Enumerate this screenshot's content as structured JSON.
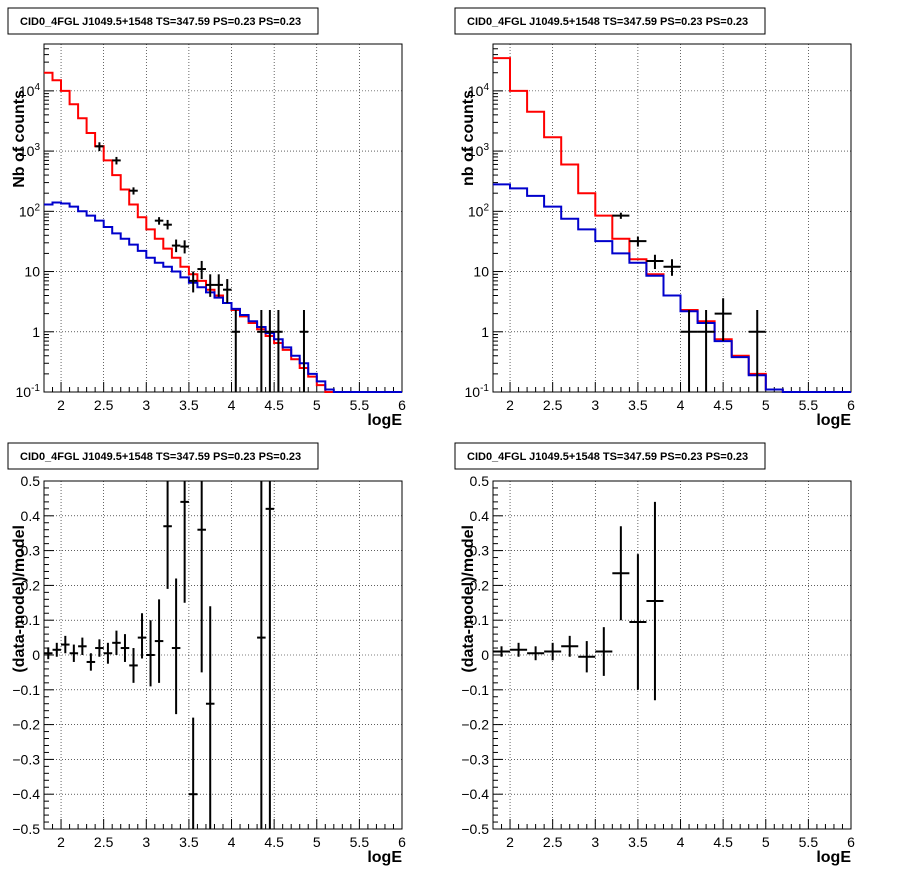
{
  "chart_data": [
    {
      "type": "line",
      "title": "CID0_4FGL J1049.5+1548 TS=347.59 PS=0.23 PS=0.23",
      "xlabel": "logE",
      "ylabel": "Nb of counts",
      "xlim": [
        1.8,
        6
      ],
      "ylim": [
        0.1,
        60000
      ],
      "yscale": "log",
      "grid": true,
      "x_ticks": [
        "2",
        "2.5",
        "3",
        "3.5",
        "4",
        "4.5",
        "5",
        "5.5",
        "6"
      ],
      "y_ticks": [
        "10^-1",
        "1",
        "10",
        "10^2",
        "10^3",
        "10^4"
      ],
      "bin_edges": [
        1.8,
        1.9,
        2.0,
        2.1,
        2.2,
        2.3,
        2.4,
        2.5,
        2.6,
        2.7,
        2.8,
        2.9,
        3.0,
        3.1,
        3.2,
        3.3,
        3.4,
        3.5,
        3.6,
        3.7,
        3.8,
        3.9,
        4.0,
        4.1,
        4.2,
        4.3,
        4.4,
        4.5,
        4.6,
        4.7,
        4.8,
        4.9,
        5.0,
        5.1,
        5.2,
        5.3,
        5.4,
        5.5,
        5.6,
        5.7,
        5.8,
        5.9,
        6.0
      ],
      "series": [
        {
          "color": "#ff0000",
          "values": [
            20000,
            15000,
            10000,
            6000,
            3500,
            2000,
            1200,
            700,
            400,
            230,
            130,
            80,
            50,
            35,
            24,
            17,
            12,
            9,
            7,
            5,
            4,
            3,
            2.3,
            1.8,
            1.4,
            1.1,
            0.85,
            0.65,
            0.5,
            0.35,
            0.25,
            0.18,
            0.13,
            0.1,
            0.1,
            0.1,
            0.1,
            0.1,
            0.1,
            0.1,
            0.1,
            0.1
          ]
        },
        {
          "color": "#0000cc",
          "values": [
            130,
            140,
            135,
            120,
            100,
            85,
            70,
            55,
            43,
            35,
            28,
            22,
            17,
            14,
            12,
            10,
            8,
            6.5,
            5.5,
            4.5,
            3.7,
            3,
            2.4,
            1.9,
            1.5,
            1.2,
            0.95,
            0.75,
            0.55,
            0.4,
            0.3,
            0.2,
            0.15,
            0.11,
            0.1,
            0.1,
            0.1,
            0.1,
            0.1,
            0.1,
            0.1,
            0.1
          ]
        }
      ],
      "points": [
        {
          "x": 2.45,
          "y": 1200,
          "ylo": 1000,
          "yhi": 1400
        },
        {
          "x": 2.65,
          "y": 700,
          "ylo": 600,
          "yhi": 800
        },
        {
          "x": 2.85,
          "y": 220,
          "ylo": 190,
          "yhi": 250
        },
        {
          "x": 3.15,
          "y": 70,
          "ylo": 60,
          "yhi": 80
        },
        {
          "x": 3.25,
          "y": 60,
          "ylo": 50,
          "yhi": 72
        },
        {
          "x": 3.35,
          "y": 27,
          "ylo": 21,
          "yhi": 34
        },
        {
          "x": 3.45,
          "y": 26,
          "ylo": 20,
          "yhi": 33
        },
        {
          "x": 3.55,
          "y": 7,
          "ylo": 4.5,
          "yhi": 10
        },
        {
          "x": 3.65,
          "y": 11,
          "ylo": 7.5,
          "yhi": 15
        },
        {
          "x": 3.75,
          "y": 6,
          "ylo": 3.8,
          "yhi": 9
        },
        {
          "x": 3.85,
          "y": 6,
          "ylo": 3.8,
          "yhi": 9
        },
        {
          "x": 3.95,
          "y": 5,
          "ylo": 3,
          "yhi": 7.5
        },
        {
          "x": 4.05,
          "y": 1,
          "ylo": 0.1,
          "yhi": 2.3
        },
        {
          "x": 4.35,
          "y": 1,
          "ylo": 0.1,
          "yhi": 2.3
        },
        {
          "x": 4.45,
          "y": 1,
          "ylo": 0.1,
          "yhi": 2.3
        },
        {
          "x": 4.55,
          "y": 1,
          "ylo": 0.1,
          "yhi": 2.3
        },
        {
          "x": 4.85,
          "y": 1,
          "ylo": 0.1,
          "yhi": 2.3
        }
      ]
    },
    {
      "type": "line",
      "title": "CID0_4FGL J1049.5+1548 TS=347.59 PS=0.23 PS=0.23",
      "xlabel": "logE",
      "ylabel": "nb of counts",
      "xlim": [
        1.8,
        6
      ],
      "ylim": [
        0.1,
        60000
      ],
      "yscale": "log",
      "grid": true,
      "x_ticks": [
        "2",
        "2.5",
        "3",
        "3.5",
        "4",
        "4.5",
        "5",
        "5.5",
        "6"
      ],
      "y_ticks": [
        "10^-1",
        "1",
        "10",
        "10^2",
        "10^3",
        "10^4"
      ],
      "bin_edges": [
        1.8,
        2.0,
        2.2,
        2.4,
        2.6,
        2.8,
        3.0,
        3.2,
        3.4,
        3.6,
        3.8,
        4.0,
        4.2,
        4.4,
        4.6,
        4.8,
        5.0,
        5.2,
        5.4,
        5.6,
        5.8,
        6.0
      ],
      "series": [
        {
          "color": "#ff0000",
          "values": [
            35000,
            10000,
            4500,
            1700,
            600,
            200,
            85,
            35,
            16,
            9,
            4,
            2.3,
            1.5,
            0.75,
            0.4,
            0.2,
            0.11,
            0.1,
            0.1,
            0.1,
            0.1
          ]
        },
        {
          "color": "#0000cc",
          "values": [
            280,
            240,
            180,
            120,
            75,
            50,
            32,
            20,
            14,
            8.5,
            4,
            2.2,
            1.4,
            0.7,
            0.38,
            0.19,
            0.11,
            0.1,
            0.1,
            0.1,
            0.1
          ]
        }
      ],
      "points": [
        {
          "x": 3.3,
          "y": 85,
          "ylo": 75,
          "yhi": 95
        },
        {
          "x": 3.5,
          "y": 32,
          "ylo": 26,
          "yhi": 38
        },
        {
          "x": 3.7,
          "y": 15,
          "ylo": 11,
          "yhi": 19
        },
        {
          "x": 3.9,
          "y": 12,
          "ylo": 8.5,
          "yhi": 16
        },
        {
          "x": 4.1,
          "y": 1,
          "ylo": 0.1,
          "yhi": 2.3
        },
        {
          "x": 4.3,
          "y": 1,
          "ylo": 0.1,
          "yhi": 2.3
        },
        {
          "x": 4.5,
          "y": 2,
          "ylo": 0.7,
          "yhi": 3.6
        },
        {
          "x": 4.9,
          "y": 1,
          "ylo": 0.1,
          "yhi": 2.3
        }
      ]
    },
    {
      "type": "scatter",
      "title": "CID0_4FGL J1049.5+1548 TS=347.59 PS=0.23 PS=0.23",
      "xlabel": "logE",
      "ylabel": "(data-model)/model",
      "xlim": [
        1.8,
        6
      ],
      "ylim": [
        -0.5,
        0.5
      ],
      "grid": true,
      "x_ticks": [
        "2",
        "2.5",
        "3",
        "3.5",
        "4",
        "4.5",
        "5",
        "5.5",
        "6"
      ],
      "y_ticks": [
        "−0.5",
        "−0.4",
        "−0.3",
        "−0.2",
        "−0.1",
        "0",
        "0.1",
        "0.2",
        "0.3",
        "0.4",
        "0.5"
      ],
      "points": [
        {
          "x": 1.85,
          "xerr": 0.05,
          "y": 0.005,
          "ylo": -0.012,
          "yhi": 0.022
        },
        {
          "x": 1.95,
          "xerr": 0.05,
          "y": 0.015,
          "ylo": -0.005,
          "yhi": 0.035
        },
        {
          "x": 2.05,
          "xerr": 0.05,
          "y": 0.03,
          "ylo": 0.005,
          "yhi": 0.055
        },
        {
          "x": 2.15,
          "xerr": 0.05,
          "y": 0.005,
          "ylo": -0.02,
          "yhi": 0.03
        },
        {
          "x": 2.25,
          "xerr": 0.05,
          "y": 0.025,
          "ylo": 0.0,
          "yhi": 0.05
        },
        {
          "x": 2.35,
          "xerr": 0.05,
          "y": -0.02,
          "ylo": -0.045,
          "yhi": 0.005
        },
        {
          "x": 2.45,
          "xerr": 0.05,
          "y": 0.02,
          "ylo": -0.005,
          "yhi": 0.045
        },
        {
          "x": 2.55,
          "xerr": 0.05,
          "y": 0.005,
          "ylo": -0.025,
          "yhi": 0.035
        },
        {
          "x": 2.65,
          "xerr": 0.05,
          "y": 0.035,
          "ylo": 0.0,
          "yhi": 0.07
        },
        {
          "x": 2.75,
          "xerr": 0.05,
          "y": 0.02,
          "ylo": -0.02,
          "yhi": 0.06
        },
        {
          "x": 2.85,
          "xerr": 0.05,
          "y": -0.03,
          "ylo": -0.08,
          "yhi": 0.02
        },
        {
          "x": 2.95,
          "xerr": 0.05,
          "y": 0.05,
          "ylo": -0.01,
          "yhi": 0.12
        },
        {
          "x": 3.05,
          "xerr": 0.05,
          "y": 0.0,
          "ylo": -0.09,
          "yhi": 0.1
        },
        {
          "x": 3.15,
          "xerr": 0.05,
          "y": 0.04,
          "ylo": -0.08,
          "yhi": 0.16
        },
        {
          "x": 3.25,
          "xerr": 0.05,
          "y": 0.37,
          "ylo": 0.19,
          "yhi": 0.5
        },
        {
          "x": 3.35,
          "xerr": 0.05,
          "y": 0.02,
          "ylo": -0.17,
          "yhi": 0.22
        },
        {
          "x": 3.45,
          "xerr": 0.05,
          "y": 0.44,
          "ylo": 0.15,
          "yhi": 0.5
        },
        {
          "x": 3.55,
          "xerr": 0.05,
          "y": -0.4,
          "ylo": -0.5,
          "yhi": -0.18
        },
        {
          "x": 3.65,
          "xerr": 0.05,
          "y": 0.36,
          "ylo": -0.05,
          "yhi": 0.5
        },
        {
          "x": 3.75,
          "xerr": 0.05,
          "y": -0.14,
          "ylo": -0.5,
          "yhi": 0.14
        },
        {
          "x": 4.35,
          "xerr": 0.05,
          "y": 0.05,
          "ylo": -0.5,
          "yhi": 0.5
        },
        {
          "x": 4.45,
          "xerr": 0.05,
          "y": 0.42,
          "ylo": -0.5,
          "yhi": 0.5
        }
      ]
    },
    {
      "type": "scatter",
      "title": "CID0_4FGL J1049.5+1548 TS=347.59 PS=0.23 PS=0.23",
      "xlabel": "logE",
      "ylabel": "(data-model)/model",
      "xlim": [
        1.8,
        6
      ],
      "ylim": [
        -0.5,
        0.5
      ],
      "grid": true,
      "x_ticks": [
        "2",
        "2.5",
        "3",
        "3.5",
        "4",
        "4.5",
        "5",
        "5.5",
        "6"
      ],
      "y_ticks": [
        "−0.5",
        "−0.4",
        "−0.3",
        "−0.2",
        "−0.1",
        "0",
        "0.1",
        "0.2",
        "0.3",
        "0.4",
        "0.5"
      ],
      "points": [
        {
          "x": 1.9,
          "xerr": 0.1,
          "y": 0.01,
          "ylo": -0.005,
          "yhi": 0.025
        },
        {
          "x": 2.1,
          "xerr": 0.1,
          "y": 0.015,
          "ylo": -0.005,
          "yhi": 0.035
        },
        {
          "x": 2.3,
          "xerr": 0.1,
          "y": 0.005,
          "ylo": -0.015,
          "yhi": 0.025
        },
        {
          "x": 2.5,
          "xerr": 0.1,
          "y": 0.01,
          "ylo": -0.015,
          "yhi": 0.035
        },
        {
          "x": 2.7,
          "xerr": 0.1,
          "y": 0.025,
          "ylo": -0.005,
          "yhi": 0.055
        },
        {
          "x": 2.9,
          "xerr": 0.1,
          "y": -0.005,
          "ylo": -0.05,
          "yhi": 0.04
        },
        {
          "x": 3.1,
          "xerr": 0.1,
          "y": 0.01,
          "ylo": -0.06,
          "yhi": 0.08
        },
        {
          "x": 3.3,
          "xerr": 0.1,
          "y": 0.235,
          "ylo": 0.1,
          "yhi": 0.37
        },
        {
          "x": 3.5,
          "xerr": 0.1,
          "y": 0.095,
          "ylo": -0.1,
          "yhi": 0.29
        },
        {
          "x": 3.7,
          "xerr": 0.1,
          "y": 0.155,
          "ylo": -0.13,
          "yhi": 0.44
        }
      ]
    }
  ]
}
